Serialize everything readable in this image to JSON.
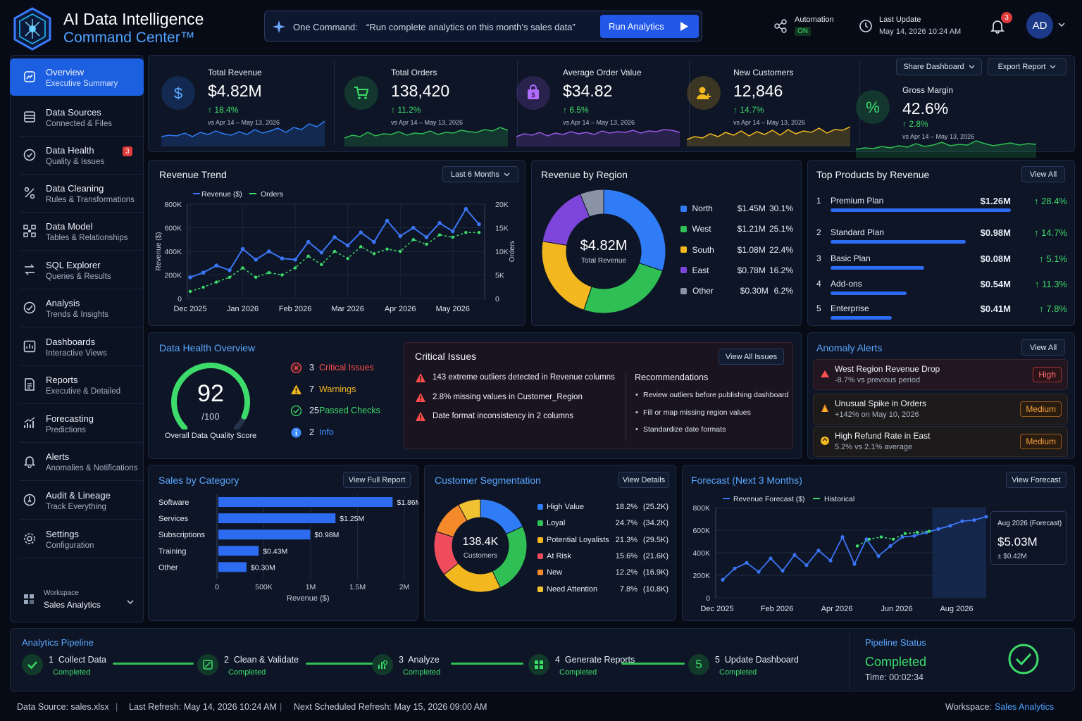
{
  "app": {
    "title_line1": "AI Data Intelligence",
    "title_line2": "Command Center™"
  },
  "command": {
    "label": "One Command:",
    "text": "“Run complete analytics on this month’s sales data”",
    "button": "Run Analytics"
  },
  "header": {
    "automation_label": "Automation",
    "automation_state": "ON",
    "last_update_label": "Last Update",
    "last_update_value": "May 14, 2026 10:24 AM",
    "notifications_count": "3",
    "avatar": "AD"
  },
  "sidebar": {
    "items": [
      {
        "title": "Overview",
        "sub": "Executive Summary",
        "icon": "overview-icon"
      },
      {
        "title": "Data Sources",
        "sub": "Connected & Files",
        "icon": "database-icon"
      },
      {
        "title": "Data Health",
        "sub": "Quality & Issues",
        "icon": "check-circle-icon",
        "badge": "3"
      },
      {
        "title": "Data Cleaning",
        "sub": "Rules & Transformations",
        "icon": "cleaning-icon"
      },
      {
        "title": "Data Model",
        "sub": "Tables & Relationships",
        "icon": "model-icon"
      },
      {
        "title": "SQL Explorer",
        "sub": "Queries & Results",
        "icon": "sql-icon"
      },
      {
        "title": "Analysis",
        "sub": "Trends & Insights",
        "icon": "analysis-icon"
      },
      {
        "title": "Dashboards",
        "sub": "Interactive Views",
        "icon": "dashboard-icon"
      },
      {
        "title": "Reports",
        "sub": "Executive & Detailed",
        "icon": "report-icon"
      },
      {
        "title": "Forecasting",
        "sub": "Predictions",
        "icon": "forecast-icon"
      },
      {
        "title": "Alerts",
        "sub": "Anomalies & Notifications",
        "icon": "bell-icon"
      },
      {
        "title": "Audit & Lineage",
        "sub": "Track Everything",
        "icon": "audit-icon"
      },
      {
        "title": "Settings",
        "sub": "Configuration",
        "icon": "gear-icon"
      }
    ],
    "workspace_label": "Workspace",
    "workspace_value": "Sales Analytics"
  },
  "toolbar": {
    "share": "Share Dashboard",
    "export": "Export Report"
  },
  "kpis": [
    {
      "label": "Total Revenue",
      "value": "$4.82M",
      "change": "18.4%",
      "period": "vs Apr 14 – May 13, 2026",
      "color": "#2f7cf6"
    },
    {
      "label": "Total Orders",
      "value": "138,420",
      "change": "11.2%",
      "period": "vs Apr 14 – May 13, 2026",
      "color": "#2fbf55"
    },
    {
      "label": "Average Order Value",
      "value": "$34.82",
      "change": "6.5%",
      "period": "vs Apr 14 – May 13, 2026",
      "color": "#9b59e8"
    },
    {
      "label": "New Customers",
      "value": "12,846",
      "change": "14.7%",
      "period": "vs Apr 14 – May 13, 2026",
      "color": "#f3b81f"
    },
    {
      "label": "Gross Margin",
      "value": "42.6%",
      "change": "2.8%",
      "period": "vs Apr 14 – May 13, 2026",
      "color": "#2fbf55"
    }
  ],
  "revenue_trend": {
    "title": "Revenue Trend",
    "range": "Last 6 Months",
    "legend_revenue": "Revenue ($)",
    "legend_orders": "Orders",
    "ylabel_left": "Revenue ($)",
    "ylabel_right": "Orders",
    "left_ticks": [
      "800K",
      "600K",
      "400K",
      "200K",
      "0"
    ],
    "right_ticks": [
      "20K",
      "15K",
      "10K",
      "5K",
      "0"
    ],
    "x_ticks": [
      "Dec 2025",
      "Jan 2026",
      "Feb 2026",
      "Mar 2026",
      "Apr 2026",
      "May 2026"
    ]
  },
  "region": {
    "title": "Revenue by Region",
    "center_value": "$4.82M",
    "center_label": "Total Revenue",
    "items": [
      {
        "name": "North",
        "value": "$1.45M",
        "pct": "30.1%",
        "color": "#2f7cf6"
      },
      {
        "name": "West",
        "value": "$1.21M",
        "pct": "25.1%",
        "color": "#2fbf55"
      },
      {
        "name": "South",
        "value": "$1.08M",
        "pct": "22.4%",
        "color": "#f3b81f"
      },
      {
        "name": "East",
        "value": "$0.78M",
        "pct": "16.2%",
        "color": "#7d45d9"
      },
      {
        "name": "Other",
        "value": "$0.30M",
        "pct": "6.2%",
        "color": "#8a93a6"
      }
    ]
  },
  "top_products": {
    "title": "Top Products by Revenue",
    "button": "View All",
    "items": [
      {
        "rank": "1",
        "name": "Premium Plan",
        "value": "$1.26M",
        "change": "28.4%",
        "fill": 1.0
      },
      {
        "rank": "2",
        "name": "Standard Plan",
        "value": "$0.98M",
        "change": "14.7%",
        "fill": 0.75
      },
      {
        "rank": "3",
        "name": "Basic Plan",
        "value": "$0.08M",
        "change": "5.1%",
        "fill": 0.52
      },
      {
        "rank": "4",
        "name": "Add-ons",
        "value": "$0.54M",
        "change": "11.3%",
        "fill": 0.42
      },
      {
        "rank": "5",
        "name": "Enterprise",
        "value": "$0.41M",
        "change": "7.8%",
        "fill": 0.34
      }
    ]
  },
  "data_health": {
    "title": "Data Health Overview",
    "score": "92",
    "score_den": "/100",
    "score_fraction": 0.92,
    "score_label": "Overall Data Quality Score",
    "stats": [
      {
        "count": "3",
        "label": "Critical Issues",
        "color": "#ff4d4d"
      },
      {
        "count": "7",
        "label": "Warnings",
        "color": "#f3b81f"
      },
      {
        "count": "25",
        "label": "Passed Checks",
        "color": "#3ddc6a"
      },
      {
        "count": "2",
        "label": "Info",
        "color": "#3d8bff"
      }
    ]
  },
  "critical": {
    "title": "Critical Issues",
    "button": "View All Issues",
    "issues": [
      "143 extreme outliers detected in Revenue columns",
      "2.8% missing values in Customer_Region",
      "Date format inconsistency in 2 columns"
    ],
    "rec_title": "Recommendations",
    "recs": [
      "Review outliers before publishing dashboard",
      "Fill or map missing region values",
      "Standardize date formats"
    ]
  },
  "anomalies": {
    "title": "Anomaly Alerts",
    "button": "View All",
    "items": [
      {
        "title": "West Region Revenue Drop",
        "sub": "-8.7% vs previous period",
        "level": "High"
      },
      {
        "title": "Unusual Spike in Orders",
        "sub": "+142% on May 10, 2026",
        "level": "Medium"
      },
      {
        "title": "High Refund Rate in East",
        "sub": "5.2% vs 2.1% average",
        "level": "Medium"
      }
    ]
  },
  "sales_category": {
    "title": "Sales by Category",
    "button": "View Full Report",
    "xlabel": "Revenue ($)",
    "x_ticks": [
      "0",
      "500K",
      "1M",
      "1.5M",
      "2M"
    ]
  },
  "segmentation": {
    "title": "Customer Segmentation",
    "button": "View Details",
    "center_value": "138.4K",
    "center_label": "Customers",
    "items": [
      {
        "name": "High Value",
        "pct": "18.2%",
        "count": "(25.2K)",
        "color": "#2f7cf6"
      },
      {
        "name": "Loyal",
        "pct": "24.7%",
        "count": "(34.2K)",
        "color": "#2fbf55"
      },
      {
        "name": "Potential Loyalists",
        "pct": "21.3%",
        "count": "(29.5K)",
        "color": "#f3b81f"
      },
      {
        "name": "At Risk",
        "pct": "15.6%",
        "count": "(21.6K)",
        "color": "#ef4d5d"
      },
      {
        "name": "New",
        "pct": "12.2%",
        "count": "(16.9K)",
        "color": "#f58a2a"
      },
      {
        "name": "Need Attention",
        "pct": "7.8%",
        "count": "(10.8K)",
        "color": "#f0c233"
      }
    ]
  },
  "forecast": {
    "title": "Forecast (Next 3 Months)",
    "button": "View Forecast",
    "legend_forecast": "Revenue Forecast ($)",
    "legend_hist": "Historical",
    "y_ticks": [
      "800K",
      "600K",
      "400K",
      "200K",
      "0"
    ],
    "x_ticks": [
      "Dec 2025",
      "Feb 2026",
      "Apr 2026",
      "Jun 2026",
      "Aug 2026"
    ],
    "tooltip_label": "Aug 2026 (Forecast)",
    "tooltip_value": "$5.03M",
    "tooltip_range": "± $0.42M"
  },
  "pipeline": {
    "title": "Analytics Pipeline",
    "steps": [
      {
        "num": "1",
        "name": "Collect Data",
        "status": "Completed"
      },
      {
        "num": "2",
        "name": "Clean & Validate",
        "status": "Completed"
      },
      {
        "num": "3",
        "name": "Analyze",
        "status": "Completed"
      },
      {
        "num": "4",
        "name": "Generate Reports",
        "status": "Completed"
      },
      {
        "num": "5",
        "name": "Update Dashboard",
        "status": "Completed"
      }
    ],
    "status_title": "Pipeline Status",
    "status_value": "Completed",
    "time": "Time: 00:02:34"
  },
  "footer": {
    "source": "Data Source: sales.xlsx",
    "last_refresh": "Last Refresh: May 14, 2026 10:24 AM",
    "next_refresh": "Next Scheduled Refresh: May 15, 2026 09:00 AM",
    "workspace_label": "Workspace:",
    "workspace_value": "Sales Analytics"
  },
  "chart_data": [
    {
      "type": "line",
      "title": "Revenue Trend",
      "x": [
        "Dec 2025",
        "",
        "",
        "",
        "Jan 2026",
        "",
        "",
        "",
        "Feb 2026",
        "",
        "",
        "",
        "Mar 2026",
        "",
        "",
        "",
        "Apr 2026",
        "",
        "",
        "",
        "May 2026",
        "",
        ""
      ],
      "series": [
        {
          "name": "Revenue ($)",
          "axis": "left",
          "values": [
            180000,
            220000,
            280000,
            240000,
            420000,
            330000,
            400000,
            340000,
            330000,
            480000,
            390000,
            520000,
            450000,
            560000,
            480000,
            660000,
            530000,
            600000,
            520000,
            640000,
            570000,
            760000,
            630000
          ]
        },
        {
          "name": "Orders",
          "axis": "right",
          "values": [
            1500,
            2400,
            3500,
            4500,
            6500,
            4500,
            5500,
            5000,
            6500,
            9000,
            7200,
            10000,
            8500,
            11000,
            9500,
            10500,
            10000,
            12500,
            11500,
            13500,
            13000,
            14000,
            14000
          ]
        }
      ],
      "ylim_left": [
        0,
        800000
      ],
      "ylim_right": [
        0,
        20000
      ],
      "ylabel_left": "Revenue ($)",
      "ylabel_right": "Orders",
      "legend": "top-left",
      "grid": true
    },
    {
      "type": "pie",
      "title": "Revenue by Region",
      "categories": [
        "North",
        "West",
        "South",
        "East",
        "Other"
      ],
      "values": [
        30.1,
        25.1,
        22.4,
        16.2,
        6.2
      ]
    },
    {
      "type": "bar",
      "title": "Sales by Category",
      "categories": [
        "Software",
        "Services",
        "Subscriptions",
        "Training",
        "Other"
      ],
      "values": [
        1860000,
        1250000,
        980000,
        430000,
        300000
      ],
      "labels": [
        "$1.86M",
        "$1.25M",
        "$0.98M",
        "$0.43M",
        "$0.30M"
      ],
      "xlim": [
        0,
        2000000
      ],
      "xlabel": "Revenue ($)",
      "grid": true
    },
    {
      "type": "pie",
      "title": "Customer Segmentation",
      "categories": [
        "High Value",
        "Loyal",
        "Potential Loyalists",
        "At Risk",
        "New",
        "Need Attention"
      ],
      "values": [
        18.2,
        24.7,
        21.3,
        15.6,
        12.2,
        7.8
      ]
    },
    {
      "type": "line",
      "title": "Forecast (Next 3 Months)",
      "x_month_index": [
        0,
        0.4,
        0.8,
        1.2,
        1.6,
        2,
        2.4,
        2.8,
        3.2,
        3.6,
        4,
        4.4,
        4.8,
        5.2,
        5.6,
        6,
        6.4,
        6.8,
        7.2,
        7.6,
        8,
        8.4,
        8.8
      ],
      "x_ticks": [
        "Dec 2025",
        "Feb 2026",
        "Apr 2026",
        "Jun 2026",
        "Aug 2026"
      ],
      "series": [
        {
          "name": "Revenue Forecast ($)",
          "values": [
            160000,
            260000,
            310000,
            230000,
            350000,
            240000,
            380000,
            290000,
            420000,
            330000,
            540000,
            300000,
            520000,
            370000,
            460000,
            540000,
            550000,
            580000,
            610000,
            640000,
            680000,
            690000,
            720000
          ]
        },
        {
          "name": "Historical",
          "start_index": 11,
          "values": [
            460000,
            520000,
            540000,
            520000,
            570000,
            580000,
            590000
          ]
        }
      ],
      "ylim": [
        0,
        800000
      ],
      "forecast_region_start_month": 7,
      "legend": "top-left"
    }
  ]
}
